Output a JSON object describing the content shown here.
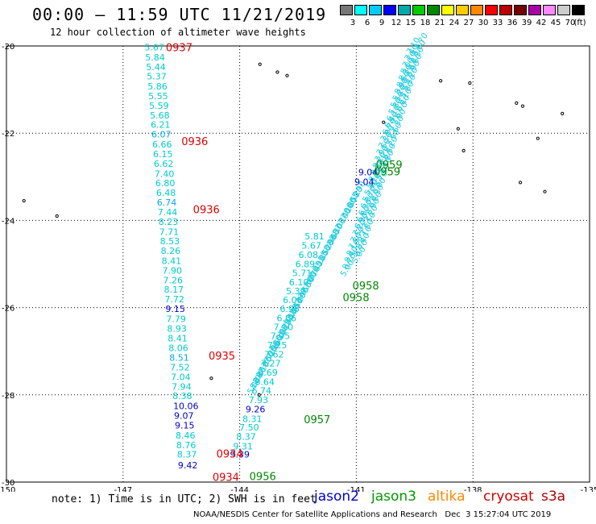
{
  "title": "00:00 – 11:59 UTC 11/21/2019",
  "subtitle": "12 hour collection of altimeter wave heights",
  "note": "note: 1) Time is in UTC; 2) SWH is in feet",
  "credit": "NOAA/NESDIS Center for Satellite Applications and Research   Dec  3 15:27:04 UTC 2019",
  "satellites": [
    {
      "name": "jason2",
      "color": "#0000cc"
    },
    {
      "name": "jason3",
      "color": "#009900"
    },
    {
      "name": "altika",
      "color": "#ff8800"
    },
    {
      "name": "cryosat",
      "color": "#cc0000"
    },
    {
      "name": "s3a",
      "color": "#b00000"
    }
  ],
  "color_scale": {
    "colors": [
      "#777777",
      "#00ffff",
      "#00ccff",
      "#0000ff",
      "#00aaaa",
      "#00cc00",
      "#008800",
      "#ffff00",
      "#ffcc00",
      "#ff8800",
      "#ff0000",
      "#bb0000",
      "#770000",
      "#aa00aa",
      "#ff88ff",
      "#cccccc",
      "#000000"
    ],
    "labels": [
      "3",
      "6",
      "9",
      "12",
      "15",
      "18",
      "21",
      "24",
      "27",
      "30",
      "33",
      "36",
      "39",
      "42",
      "45",
      "70",
      "(ft)"
    ]
  },
  "map": {
    "lon_range": [
      -150,
      -135
    ],
    "lat_range": [
      -30,
      -20
    ],
    "x_ticks": [
      "-150",
      "-147",
      "-144",
      "-141",
      "-138",
      "-135"
    ],
    "y_ticks": [
      "-20",
      "-22",
      "-24",
      "-26",
      "-28",
      "-30"
    ],
    "track_a": {
      "values": [
        "5.67",
        "5.84",
        "5.44",
        "5.37",
        "5.86",
        "5.55",
        "5.59",
        "5.68",
        "6.21",
        "6.07",
        "6.66",
        "6.15",
        "6.62",
        "7.40",
        "6.80",
        "6.48",
        "6.74",
        "7.44",
        "8.23",
        "7.71",
        "8.53",
        "8.26",
        "8.41",
        "7.90",
        "7.26",
        "8.17",
        "7.72",
        "9.15",
        "7.79",
        "8.93",
        "8.41",
        "8.06",
        "8.51",
        "7.52",
        "7.04",
        "7.94",
        "8.38",
        "10.06",
        "9.07",
        "9.15",
        "8.46",
        "8.76",
        "8.37",
        "9.42"
      ],
      "colors": [
        "c",
        "c",
        "c",
        "c",
        "c",
        "c",
        "c",
        "c",
        "c",
        "b",
        "c",
        "c",
        "c",
        "c",
        "c",
        "c",
        "b",
        "c",
        "c",
        "c",
        "c",
        "c",
        "c",
        "c",
        "c",
        "c",
        "c",
        "n",
        "c",
        "c",
        "c",
        "c",
        "b",
        "c",
        "c",
        "c",
        "c",
        "n",
        "n",
        "n",
        "c",
        "c",
        "c",
        "n"
      ],
      "lats": [
        -20.1,
        -20.33,
        -20.55,
        -20.77,
        -21.0,
        -21.22,
        -21.44,
        -21.66,
        -21.88,
        -22.1,
        -22.33,
        -22.55,
        -22.77,
        -23.0,
        -23.22,
        -23.44,
        -23.66,
        -23.88,
        -24.1,
        -24.33,
        -24.55,
        -24.77,
        -25.0,
        -25.22,
        -25.44,
        -25.66,
        -25.88,
        -26.1,
        -26.33,
        -26.55,
        -26.77,
        -27.0,
        -27.22,
        -27.44,
        -27.66,
        -27.88,
        -28.1,
        -28.33,
        -28.55,
        -28.77,
        -29.0,
        -29.22,
        -29.44,
        -29.69
      ],
      "lons": [
        -146.45,
        -146.43,
        -146.41,
        -146.39,
        -146.37,
        -146.35,
        -146.33,
        -146.31,
        -146.29,
        -146.27,
        -146.25,
        -146.23,
        -146.21,
        -146.19,
        -146.17,
        -146.15,
        -146.13,
        -146.11,
        -146.09,
        -146.07,
        -146.05,
        -146.03,
        -146.01,
        -145.99,
        -145.97,
        -145.95,
        -145.93,
        -145.91,
        -145.89,
        -145.87,
        -145.85,
        -145.83,
        -145.81,
        -145.79,
        -145.77,
        -145.75,
        -145.73,
        -145.71,
        -145.69,
        -145.67,
        -145.65,
        -145.63,
        -145.61,
        -145.59
      ]
    },
    "track_b": {
      "values": [
        "9.39",
        "9.31",
        "8.37",
        "7.50",
        "8.31",
        "9.26",
        "7.93",
        "6.74",
        "8.64",
        "6.69",
        "7.27",
        "7.62",
        "7.25",
        "7.95",
        "7.10",
        "6.06",
        "6.96",
        "6.08",
        "5.39",
        "6.10",
        "5.71",
        "6.89",
        "6.08",
        "5.67",
        "5.81"
      ],
      "colors": [
        "n",
        "c",
        "c",
        "c",
        "c",
        "n",
        "c",
        "c",
        "c",
        "c",
        "c",
        "c",
        "c",
        "c",
        "c",
        "c",
        "c",
        "c",
        "c",
        "c",
        "c",
        "c",
        "c",
        "c",
        "c"
      ],
      "lats": [
        -29.44,
        -29.25,
        -29.03,
        -28.82,
        -28.62,
        -28.4,
        -28.19,
        -27.98,
        -27.77,
        -27.56,
        -27.35,
        -27.14,
        -26.93,
        -26.72,
        -26.52,
        -26.31,
        -26.1,
        -25.9,
        -25.69,
        -25.49,
        -25.28,
        -25.07,
        -24.86,
        -24.65,
        -24.44
      ],
      "lons": [
        -144.25,
        -144.17,
        -144.09,
        -144.01,
        -143.93,
        -143.85,
        -143.77,
        -143.69,
        -143.61,
        -143.53,
        -143.45,
        -143.37,
        -143.29,
        -143.21,
        -143.13,
        -143.05,
        -142.97,
        -142.89,
        -142.81,
        -142.73,
        -142.65,
        -142.57,
        -142.49,
        -142.41,
        -142.33
      ]
    },
    "track_c_values": [
      "9.04",
      "9.04"
    ],
    "time_labels": [
      {
        "text": "0937",
        "color": "r",
        "lat": -20.12,
        "lon": -145.9
      },
      {
        "text": "0936",
        "color": "r",
        "lat": -22.27,
        "lon": -145.5
      },
      {
        "text": "0936",
        "color": "r",
        "lat": -23.84,
        "lon": -145.2
      },
      {
        "text": "0935",
        "color": "r",
        "lat": -27.19,
        "lon": -144.8
      },
      {
        "text": "0934",
        "color": "r",
        "lat": -29.44,
        "lon": -144.6
      },
      {
        "text": "0934",
        "color": "r",
        "lat": -29.97,
        "lon": -144.7
      },
      {
        "text": "0959",
        "color": "g",
        "lat": -22.81,
        "lon": -140.5
      },
      {
        "text": "0959",
        "color": "g",
        "lat": -22.97,
        "lon": -140.55
      },
      {
        "text": "0958",
        "color": "g",
        "lat": -25.58,
        "lon": -141.1
      },
      {
        "text": "0958",
        "color": "g",
        "lat": -25.85,
        "lon": -141.35
      },
      {
        "text": "0957",
        "color": "g",
        "lat": -28.65,
        "lon": -142.35
      },
      {
        "text": "0956",
        "color": "g",
        "lat": -29.95,
        "lon": -143.75
      }
    ],
    "islands": [
      {
        "lat": -20.42,
        "lon": -143.48
      },
      {
        "lat": -20.6,
        "lon": -143.03
      },
      {
        "lat": -20.68,
        "lon": -142.78
      },
      {
        "lat": -20.8,
        "lon": -138.83
      },
      {
        "lat": -20.85,
        "lon": -138.08
      },
      {
        "lat": -21.31,
        "lon": -136.88
      },
      {
        "lat": -21.38,
        "lon": -136.72
      },
      {
        "lat": -21.55,
        "lon": -135.7
      },
      {
        "lat": -21.9,
        "lon": -138.38
      },
      {
        "lat": -22.12,
        "lon": -136.33
      },
      {
        "lat": -22.4,
        "lon": -138.24
      },
      {
        "lat": -23.13,
        "lon": -136.78
      },
      {
        "lat": -23.34,
        "lon": -136.15
      },
      {
        "lat": -23.55,
        "lon": -149.55
      },
      {
        "lat": -23.9,
        "lon": -148.7
      },
      {
        "lat": -27.62,
        "lon": -144.73
      },
      {
        "lat": -28.0,
        "lon": -143.5
      },
      {
        "lat": -21.75,
        "lon": -140.3
      }
    ]
  }
}
